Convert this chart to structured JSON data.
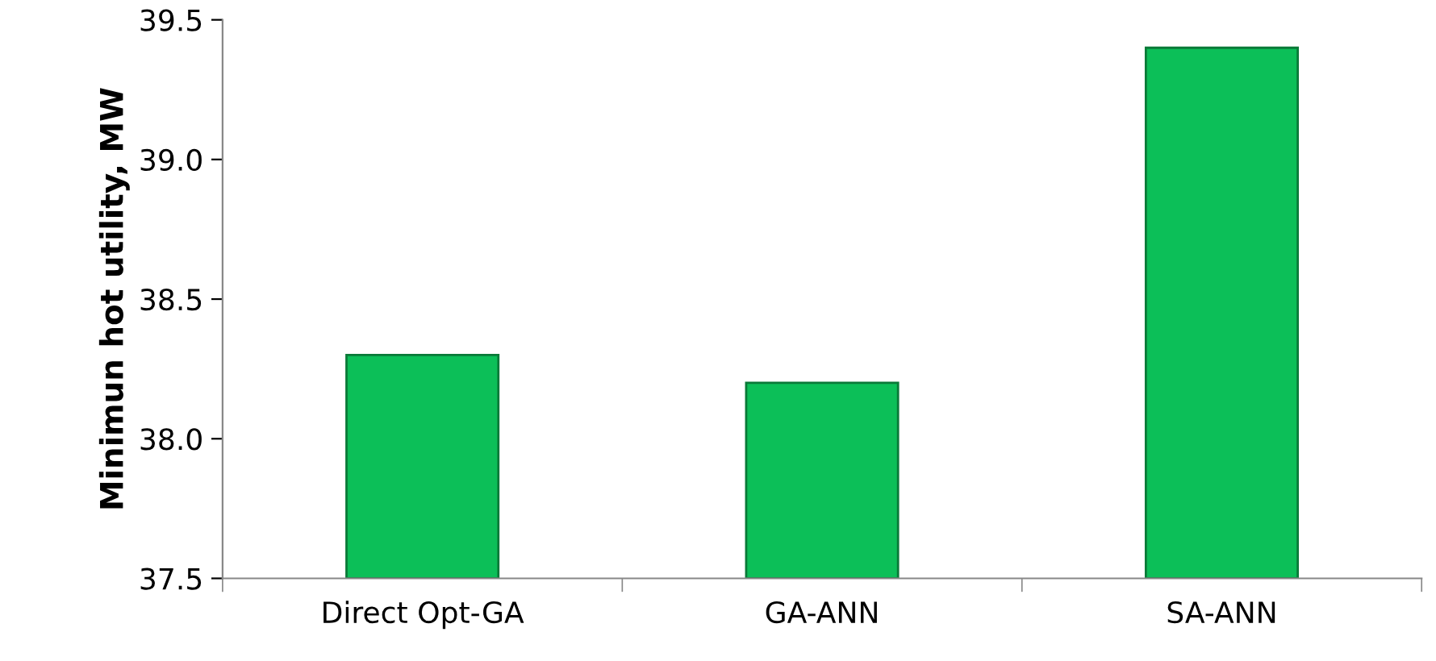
{
  "chart_data": {
    "type": "bar",
    "ylabel": "Minimun hot utility, MW",
    "categories": [
      "Direct Opt-GA",
      "GA-ANN",
      "SA-ANN"
    ],
    "values": [
      38.3,
      38.2,
      39.4
    ],
    "color": "#0cbf58",
    "ylim": [
      37.5,
      39.5
    ],
    "yticks": [
      37.5,
      {
        "value": 38,
        "label": "38.0"
      },
      38.5,
      {
        "value": 39,
        "label": "39.0"
      },
      39.5
    ],
    "grid": false
  }
}
